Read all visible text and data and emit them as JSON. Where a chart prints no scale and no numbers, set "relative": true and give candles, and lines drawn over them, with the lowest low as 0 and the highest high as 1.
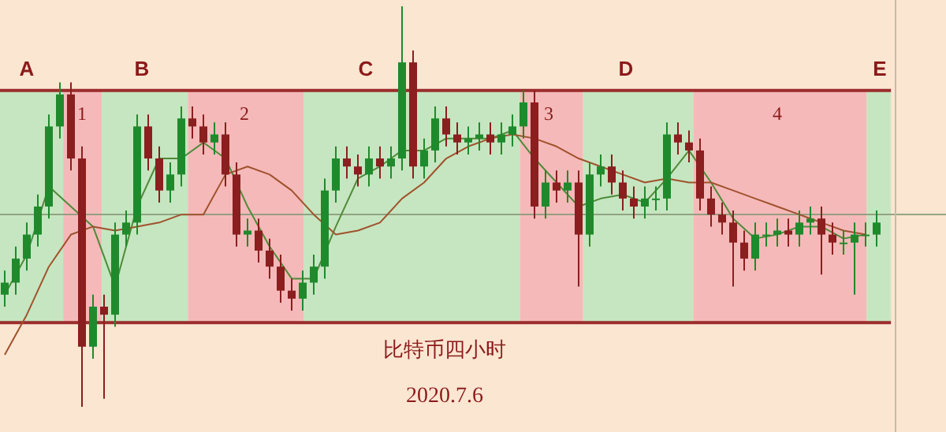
{
  "chart_data": {
    "type": "candlestick",
    "relative": true,
    "title": "比特币四小时",
    "subtitle": "2020.7.6",
    "categories": [
      null,
      null,
      null,
      null,
      null,
      null,
      null,
      null,
      null,
      null,
      null,
      null,
      null,
      null,
      null,
      null,
      null,
      null,
      null,
      null,
      null,
      null,
      null,
      null,
      null,
      null,
      null,
      null,
      null,
      null,
      null,
      null,
      null,
      null,
      null,
      null,
      null,
      null,
      null,
      null,
      null,
      null,
      null,
      null,
      null,
      null,
      null,
      null,
      null,
      null,
      null,
      null,
      null,
      null,
      null,
      null,
      null,
      null,
      null,
      null,
      null,
      null,
      null,
      null,
      null,
      null,
      null,
      null,
      null,
      null,
      null,
      null,
      null,
      null,
      null,
      null,
      null,
      null,
      null,
      null
    ],
    "ohlc": [
      [
        0.28,
        0.34,
        0.25,
        0.31
      ],
      [
        0.31,
        0.4,
        0.28,
        0.37
      ],
      [
        0.37,
        0.46,
        0.34,
        0.43
      ],
      [
        0.43,
        0.53,
        0.4,
        0.5
      ],
      [
        0.5,
        0.73,
        0.47,
        0.7
      ],
      [
        0.7,
        0.81,
        0.67,
        0.78
      ],
      [
        0.78,
        0.81,
        0.59,
        0.62
      ],
      [
        0.62,
        0.65,
        0.0,
        0.15
      ],
      [
        0.15,
        0.28,
        0.12,
        0.25
      ],
      [
        0.25,
        0.28,
        0.02,
        0.23
      ],
      [
        0.23,
        0.46,
        0.2,
        0.43
      ],
      [
        0.43,
        0.49,
        0.4,
        0.46
      ],
      [
        0.46,
        0.73,
        0.43,
        0.7
      ],
      [
        0.7,
        0.73,
        0.59,
        0.62
      ],
      [
        0.62,
        0.65,
        0.51,
        0.54
      ],
      [
        0.54,
        0.61,
        0.51,
        0.58
      ],
      [
        0.58,
        0.75,
        0.55,
        0.72
      ],
      [
        0.72,
        0.75,
        0.67,
        0.7
      ],
      [
        0.7,
        0.73,
        0.63,
        0.66
      ],
      [
        0.66,
        0.71,
        0.63,
        0.68
      ],
      [
        0.68,
        0.71,
        0.55,
        0.58
      ],
      [
        0.58,
        0.61,
        0.4,
        0.43
      ],
      [
        0.43,
        0.47,
        0.4,
        0.44
      ],
      [
        0.44,
        0.47,
        0.36,
        0.39
      ],
      [
        0.39,
        0.42,
        0.32,
        0.35
      ],
      [
        0.35,
        0.38,
        0.26,
        0.29
      ],
      [
        0.29,
        0.32,
        0.24,
        0.27
      ],
      [
        0.27,
        0.34,
        0.24,
        0.31
      ],
      [
        0.31,
        0.38,
        0.28,
        0.35
      ],
      [
        0.35,
        0.57,
        0.32,
        0.54
      ],
      [
        0.54,
        0.65,
        0.51,
        0.62
      ],
      [
        0.62,
        0.65,
        0.57,
        0.6
      ],
      [
        0.6,
        0.63,
        0.55,
        0.58
      ],
      [
        0.58,
        0.65,
        0.55,
        0.62
      ],
      [
        0.62,
        0.65,
        0.57,
        0.6
      ],
      [
        0.6,
        0.65,
        0.57,
        0.62
      ],
      [
        0.62,
        1.0,
        0.59,
        0.86
      ],
      [
        0.86,
        0.89,
        0.57,
        0.6
      ],
      [
        0.6,
        0.67,
        0.57,
        0.64
      ],
      [
        0.64,
        0.75,
        0.61,
        0.72
      ],
      [
        0.72,
        0.75,
        0.65,
        0.68
      ],
      [
        0.68,
        0.71,
        0.63,
        0.66
      ],
      [
        0.66,
        0.7,
        0.63,
        0.67
      ],
      [
        0.67,
        0.71,
        0.64,
        0.68
      ],
      [
        0.68,
        0.71,
        0.63,
        0.66
      ],
      [
        0.66,
        0.71,
        0.63,
        0.68
      ],
      [
        0.68,
        0.73,
        0.65,
        0.7
      ],
      [
        0.7,
        0.79,
        0.67,
        0.76
      ],
      [
        0.76,
        0.79,
        0.47,
        0.5
      ],
      [
        0.5,
        0.59,
        0.47,
        0.56
      ],
      [
        0.56,
        0.59,
        0.51,
        0.54
      ],
      [
        0.54,
        0.59,
        0.51,
        0.56
      ],
      [
        0.56,
        0.59,
        0.3,
        0.43
      ],
      [
        0.43,
        0.61,
        0.4,
        0.58
      ],
      [
        0.58,
        0.63,
        0.55,
        0.6
      ],
      [
        0.6,
        0.63,
        0.53,
        0.56
      ],
      [
        0.56,
        0.59,
        0.49,
        0.52
      ],
      [
        0.52,
        0.55,
        0.47,
        0.5
      ],
      [
        0.5,
        0.55,
        0.47,
        0.52
      ],
      [
        0.52,
        0.55,
        0.49,
        0.52
      ],
      [
        0.52,
        0.71,
        0.49,
        0.68
      ],
      [
        0.68,
        0.71,
        0.63,
        0.66
      ],
      [
        0.66,
        0.69,
        0.61,
        0.64
      ],
      [
        0.64,
        0.67,
        0.49,
        0.52
      ],
      [
        0.52,
        0.55,
        0.45,
        0.48
      ],
      [
        0.48,
        0.51,
        0.43,
        0.46
      ],
      [
        0.46,
        0.49,
        0.3,
        0.41
      ],
      [
        0.41,
        0.44,
        0.34,
        0.37
      ],
      [
        0.37,
        0.46,
        0.34,
        0.43
      ],
      [
        0.43,
        0.46,
        0.4,
        0.43
      ],
      [
        0.43,
        0.47,
        0.4,
        0.44
      ],
      [
        0.44,
        0.47,
        0.4,
        0.43
      ],
      [
        0.43,
        0.49,
        0.4,
        0.46
      ],
      [
        0.46,
        0.5,
        0.43,
        0.47
      ],
      [
        0.47,
        0.5,
        0.33,
        0.43
      ],
      [
        0.43,
        0.46,
        0.38,
        0.41
      ],
      [
        0.41,
        0.44,
        0.38,
        0.41
      ],
      [
        0.41,
        0.46,
        0.28,
        0.43
      ],
      [
        0.43,
        0.46,
        0.4,
        0.43
      ],
      [
        0.43,
        0.49,
        0.4,
        0.46
      ]
    ],
    "series": [
      {
        "type": "line",
        "color": "#4f8a3a",
        "values": [
          0.28,
          null,
          0.38,
          null,
          0.55,
          null,
          null,
          null,
          0.45,
          null,
          0.3,
          null,
          0.5,
          null,
          0.62,
          null,
          0.62,
          null,
          0.66,
          null,
          0.62,
          null,
          0.5,
          null,
          0.4,
          null,
          0.32,
          null,
          0.32,
          null,
          0.45,
          null,
          0.57,
          null,
          0.6,
          null,
          0.64,
          null,
          0.64,
          null,
          0.67,
          null,
          0.67,
          null,
          0.67,
          null,
          0.69,
          null,
          0.62,
          null,
          0.56,
          null,
          0.5,
          null,
          0.52,
          null,
          0.53,
          null,
          0.51,
          null,
          0.57,
          null,
          0.64,
          null,
          0.56,
          null,
          0.47,
          null,
          0.42,
          null,
          0.43,
          null,
          0.45,
          null,
          0.45,
          null,
          0.42,
          null,
          0.43,
          null
        ]
      },
      {
        "type": "line",
        "color": "#a0522d",
        "values": [
          0.13,
          null,
          0.23,
          null,
          0.35,
          null,
          0.43,
          null,
          0.45,
          null,
          0.44,
          null,
          0.45,
          null,
          0.46,
          null,
          0.48,
          null,
          0.48,
          null,
          0.58,
          null,
          0.6,
          null,
          0.58,
          null,
          0.54,
          null,
          0.48,
          null,
          0.43,
          null,
          0.44,
          null,
          0.46,
          null,
          0.52,
          null,
          0.56,
          null,
          0.62,
          null,
          0.65,
          null,
          0.67,
          null,
          0.68,
          null,
          0.67,
          null,
          0.65,
          null,
          0.62,
          null,
          0.6,
          null,
          0.58,
          null,
          0.56,
          null,
          0.57,
          null,
          0.56,
          null,
          0.56,
          null,
          0.54,
          null,
          0.52,
          null,
          0.5,
          null,
          0.48,
          null,
          0.46,
          null,
          0.44,
          null,
          0.43,
          null
        ]
      }
    ],
    "ref_lines": [
      {
        "axis": "y",
        "value": 0.79,
        "color": "#9b2c2c"
      },
      {
        "axis": "y",
        "value": 0.21,
        "color": "#9b2c2c"
      },
      {
        "axis": "y",
        "value": 0.48,
        "color": "#8a9a7a"
      }
    ],
    "annotations": [
      "A",
      "B",
      "C",
      "D",
      "E",
      "1",
      "2",
      "3",
      "4"
    ]
  }
}
